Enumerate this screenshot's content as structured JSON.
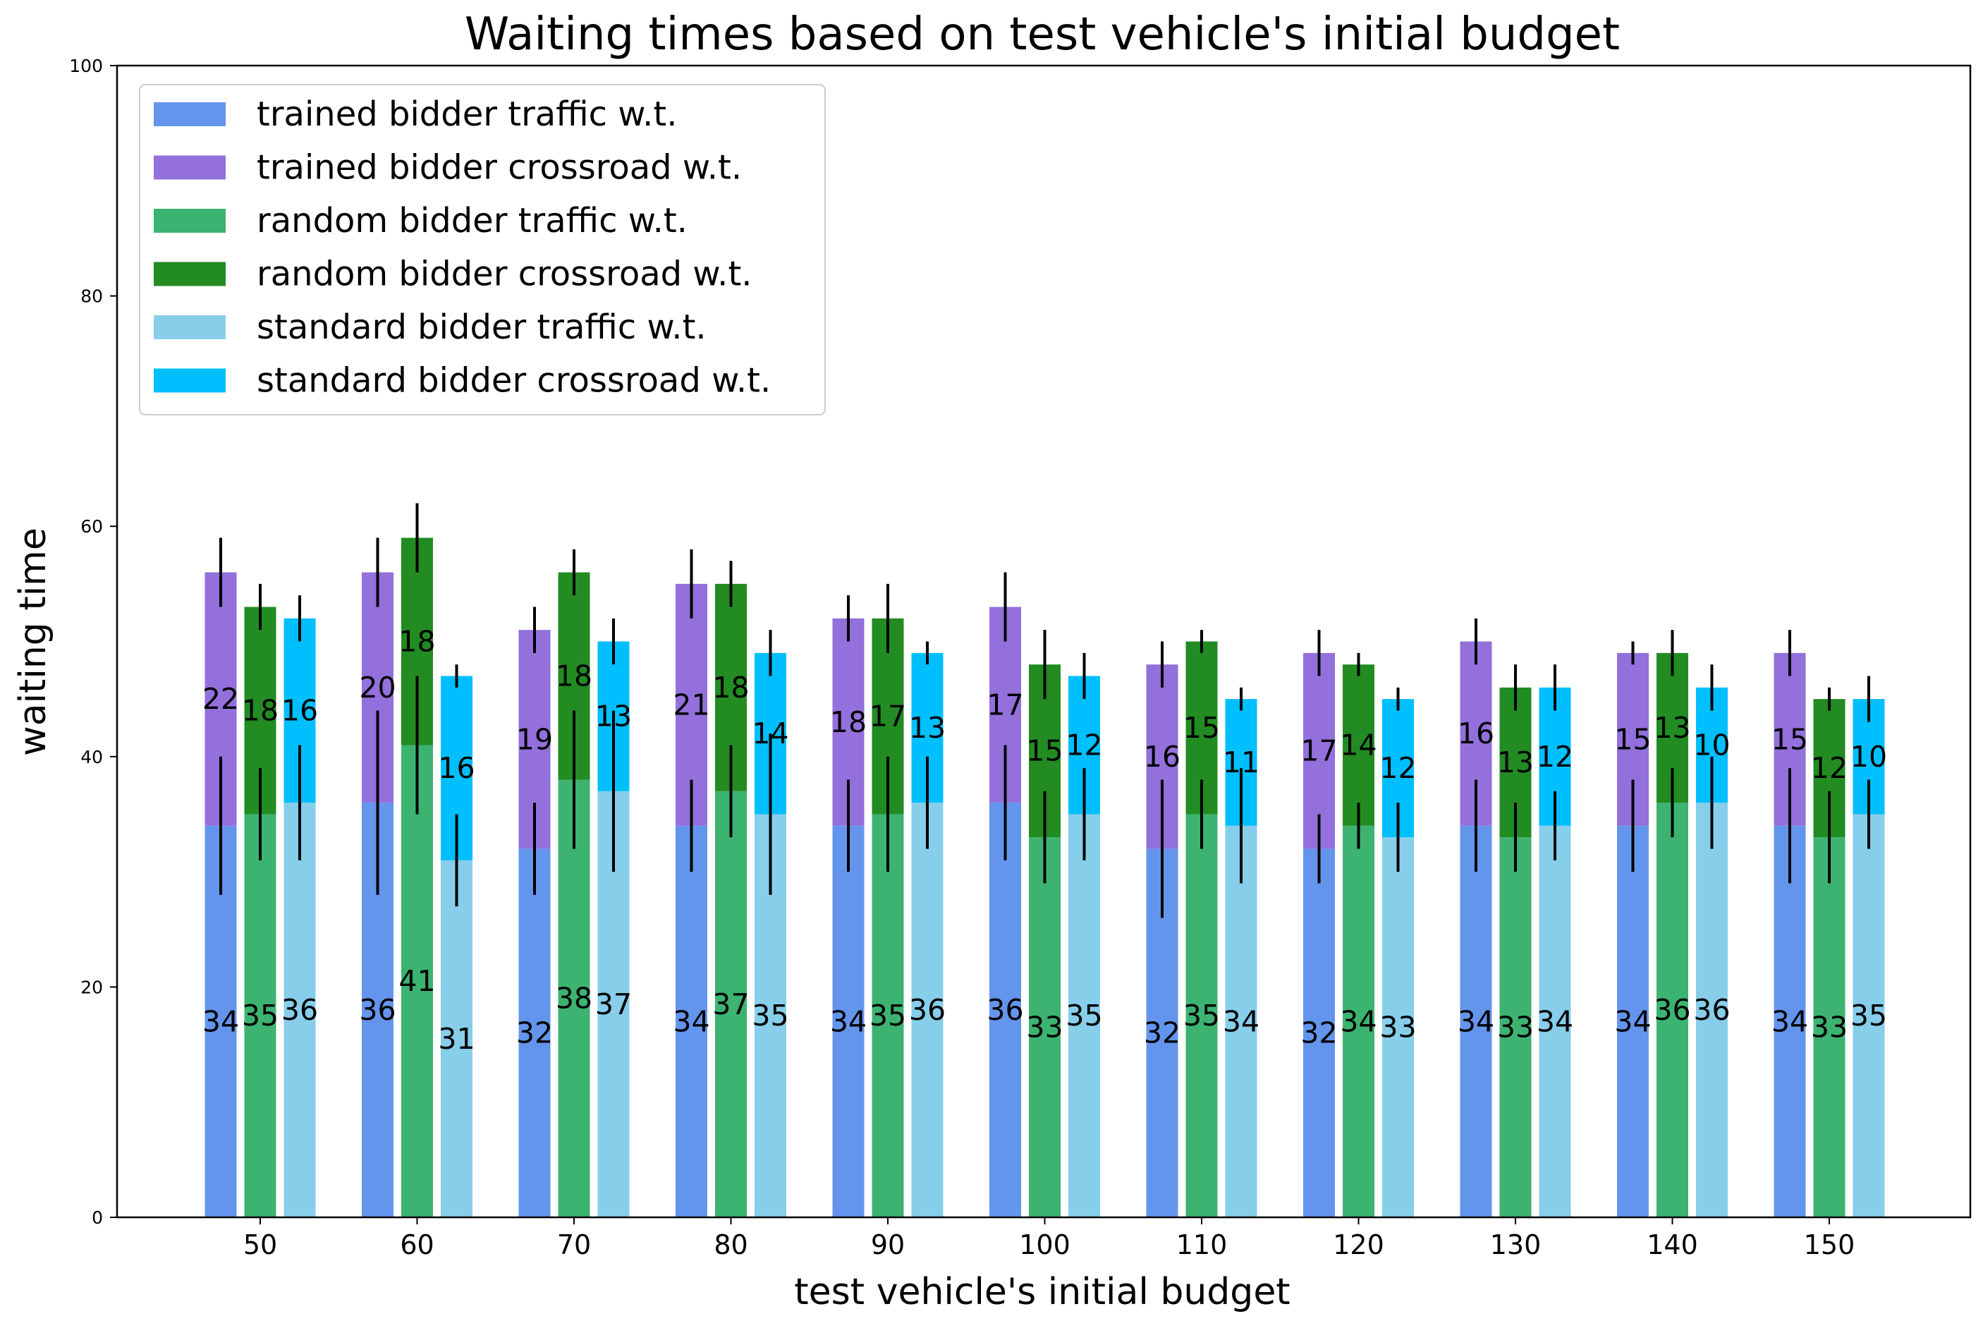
{
  "chart_data": {
    "type": "bar",
    "title": "Waiting times based on test vehicle's initial budget",
    "xlabel": "test vehicle's initial budget",
    "ylabel": "waiting time",
    "ylim": [
      0,
      100
    ],
    "yticks": [
      "0",
      "20",
      "40",
      "60",
      "80",
      "100"
    ],
    "categories": [
      "50",
      "60",
      "70",
      "80",
      "90",
      "100",
      "110",
      "120",
      "130",
      "140",
      "150"
    ],
    "grid": false,
    "legend_position": "top-left",
    "legend": [
      {
        "label": "trained bidder traffic w.t.",
        "color": "#6495ED"
      },
      {
        "label": "trained bidder crossroad w.t.",
        "color": "#9370DB"
      },
      {
        "label": "random bidder traffic w.t.",
        "color": "#3CB371"
      },
      {
        "label": "random bidder crossroad w.t.",
        "color": "#228B22"
      },
      {
        "label": "standard bidder traffic w.t.",
        "color": "#87CEEB"
      },
      {
        "label": "standard bidder crossroad w.t.",
        "color": "#00BFFF"
      }
    ],
    "groups": [
      {
        "name": "trained bidder",
        "traffic_color": "#6495ED",
        "crossroad_color": "#9370DB",
        "traffic": [
          34,
          36,
          32,
          34,
          34,
          36,
          32,
          32,
          34,
          34,
          34
        ],
        "crossroad": [
          22,
          20,
          19,
          21,
          18,
          17,
          16,
          17,
          16,
          15,
          15
        ],
        "traffic_err": [
          [
            28,
            40
          ],
          [
            28,
            44
          ],
          [
            28,
            36
          ],
          [
            30,
            38
          ],
          [
            30,
            38
          ],
          [
            31,
            41
          ],
          [
            26,
            38
          ],
          [
            29,
            35
          ],
          [
            30,
            38
          ],
          [
            30,
            38
          ],
          [
            29,
            39
          ]
        ],
        "total_err": [
          [
            53,
            59
          ],
          [
            53,
            59
          ],
          [
            49,
            53
          ],
          [
            52,
            58
          ],
          [
            50,
            54
          ],
          [
            50,
            56
          ],
          [
            46,
            50
          ],
          [
            47,
            51
          ],
          [
            48,
            52
          ],
          [
            48,
            50
          ],
          [
            47,
            51
          ]
        ]
      },
      {
        "name": "random bidder",
        "traffic_color": "#3CB371",
        "crossroad_color": "#228B22",
        "traffic": [
          35,
          41,
          38,
          37,
          35,
          33,
          35,
          34,
          33,
          36,
          33
        ],
        "crossroad": [
          18,
          18,
          18,
          18,
          17,
          15,
          15,
          14,
          13,
          13,
          12
        ],
        "traffic_err": [
          [
            31,
            39
          ],
          [
            35,
            47
          ],
          [
            32,
            44
          ],
          [
            33,
            41
          ],
          [
            30,
            40
          ],
          [
            29,
            37
          ],
          [
            32,
            38
          ],
          [
            32,
            36
          ],
          [
            30,
            36
          ],
          [
            33,
            39
          ],
          [
            29,
            37
          ]
        ],
        "total_err": [
          [
            51,
            55
          ],
          [
            56,
            62
          ],
          [
            54,
            58
          ],
          [
            53,
            57
          ],
          [
            49,
            55
          ],
          [
            45,
            51
          ],
          [
            49,
            51
          ],
          [
            47,
            49
          ],
          [
            44,
            48
          ],
          [
            47,
            51
          ],
          [
            44,
            46
          ]
        ]
      },
      {
        "name": "standard bidder",
        "traffic_color": "#87CEEB",
        "crossroad_color": "#00BFFF",
        "traffic": [
          36,
          31,
          37,
          35,
          36,
          35,
          34,
          33,
          34,
          36,
          35
        ],
        "crossroad": [
          16,
          16,
          13,
          14,
          13,
          12,
          11,
          12,
          12,
          10,
          10
        ],
        "traffic_err": [
          [
            31,
            41
          ],
          [
            27,
            35
          ],
          [
            30,
            44
          ],
          [
            28,
            42
          ],
          [
            32,
            40
          ],
          [
            31,
            39
          ],
          [
            29,
            39
          ],
          [
            30,
            36
          ],
          [
            31,
            37
          ],
          [
            32,
            40
          ],
          [
            32,
            38
          ]
        ],
        "total_err": [
          [
            50,
            54
          ],
          [
            46,
            48
          ],
          [
            48,
            52
          ],
          [
            47,
            51
          ],
          [
            48,
            50
          ],
          [
            45,
            49
          ],
          [
            44,
            46
          ],
          [
            44,
            46
          ],
          [
            44,
            48
          ],
          [
            44,
            48
          ],
          [
            43,
            47
          ]
        ]
      }
    ]
  }
}
